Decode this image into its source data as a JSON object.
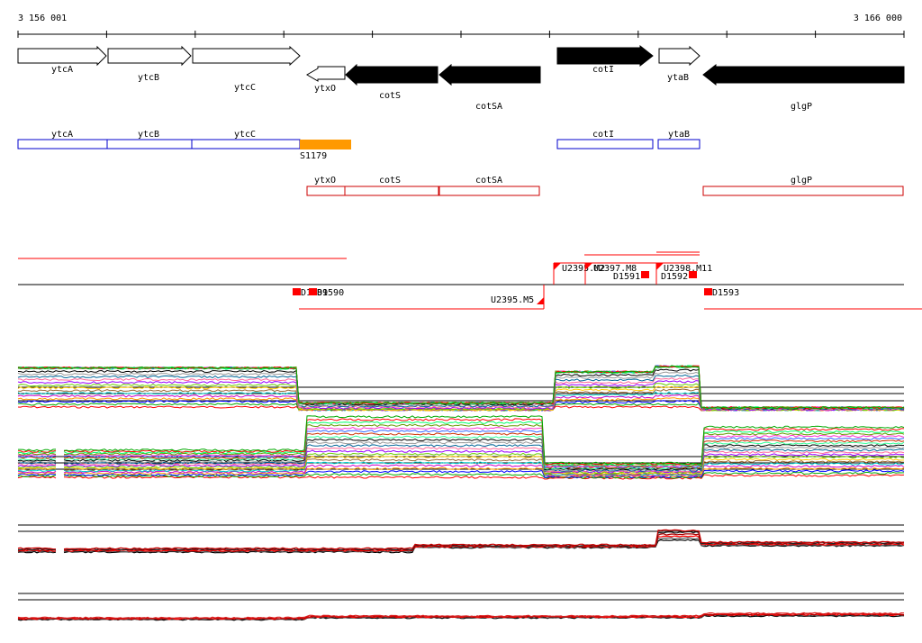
{
  "ruler": {
    "start_label": "3 156 001",
    "end_label": "3 166 000"
  },
  "colors": {
    "gene_forward": "#ffffff",
    "gene_reverse": "#000000",
    "operon_positive": "#0000cc",
    "operon_negative": "#cc0000",
    "promoter": "#ff9900",
    "terminator": "#ff0000",
    "transcript": "#ff0000"
  },
  "genes": [
    {
      "name": "ytcA",
      "strand": "+",
      "fill": "white"
    },
    {
      "name": "ytcB",
      "strand": "+",
      "fill": "white"
    },
    {
      "name": "ytcC",
      "strand": "+",
      "fill": "white"
    },
    {
      "name": "ytxO",
      "strand": "-",
      "fill": "white"
    },
    {
      "name": "cotS",
      "strand": "-",
      "fill": "black"
    },
    {
      "name": "cotSA",
      "strand": "-",
      "fill": "black"
    },
    {
      "name": "cotI",
      "strand": "+",
      "fill": "black"
    },
    {
      "name": "ytaB",
      "strand": "+",
      "fill": "white"
    },
    {
      "name": "glgP",
      "strand": "-",
      "fill": "black"
    }
  ],
  "forward_operons": [
    {
      "name": "ytcA"
    },
    {
      "name": "ytcB"
    },
    {
      "name": "ytcC"
    },
    {
      "name": "cotI"
    },
    {
      "name": "ytaB"
    }
  ],
  "promoter": {
    "name": "S1179"
  },
  "reverse_operons": [
    {
      "name": "ytxO"
    },
    {
      "name": "cotS"
    },
    {
      "name": "cotSA"
    },
    {
      "name": "glgP"
    }
  ],
  "tss_labels": [
    {
      "name": "U2395.M2"
    },
    {
      "name": "U2397.M8"
    },
    {
      "name": "U2398.M11"
    },
    {
      "name": "U2395.M5"
    }
  ],
  "terminator_labels": [
    {
      "name": "D1589"
    },
    {
      "name": "D1590"
    },
    {
      "name": "D1591"
    },
    {
      "name": "D1592"
    },
    {
      "name": "D1593"
    }
  ],
  "expression_tracks": [
    {
      "track": "forward-strand-profiles",
      "series": "multi"
    },
    {
      "track": "reverse-strand-profiles",
      "series": "multi"
    },
    {
      "track": "forward-summary",
      "series": [
        "black",
        "red"
      ]
    },
    {
      "track": "reverse-summary",
      "series": [
        "black",
        "red"
      ]
    }
  ]
}
